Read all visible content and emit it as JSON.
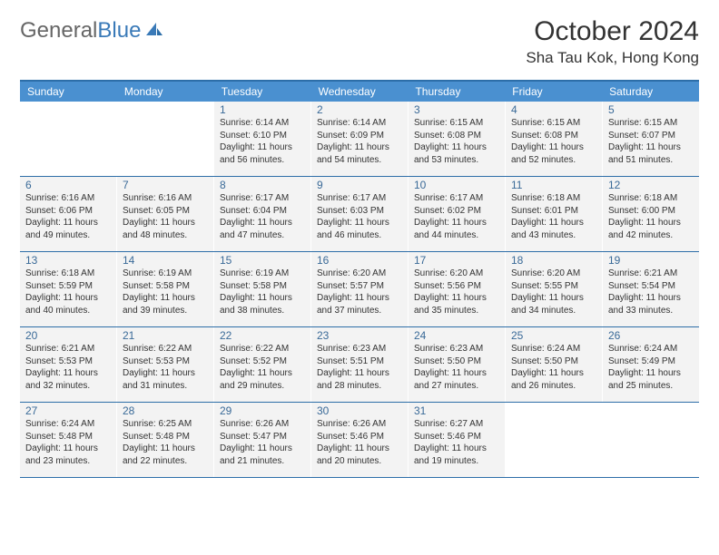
{
  "logo": {
    "text1": "General",
    "text2": "Blue"
  },
  "title": "October 2024",
  "location": "Sha Tau Kok, Hong Kong",
  "colors": {
    "header_bg": "#4a90d0",
    "header_text": "#ffffff",
    "border": "#2d6ea8",
    "cell_bg": "#f3f3f3",
    "daynum": "#3a6a98",
    "body_text": "#333333",
    "logo_gray": "#666666",
    "logo_blue": "#3a7ab8"
  },
  "day_headers": [
    "Sunday",
    "Monday",
    "Tuesday",
    "Wednesday",
    "Thursday",
    "Friday",
    "Saturday"
  ],
  "weeks": [
    [
      null,
      null,
      {
        "n": "1",
        "sr": "6:14 AM",
        "ss": "6:10 PM",
        "dl": "11 hours and 56 minutes."
      },
      {
        "n": "2",
        "sr": "6:14 AM",
        "ss": "6:09 PM",
        "dl": "11 hours and 54 minutes."
      },
      {
        "n": "3",
        "sr": "6:15 AM",
        "ss": "6:08 PM",
        "dl": "11 hours and 53 minutes."
      },
      {
        "n": "4",
        "sr": "6:15 AM",
        "ss": "6:08 PM",
        "dl": "11 hours and 52 minutes."
      },
      {
        "n": "5",
        "sr": "6:15 AM",
        "ss": "6:07 PM",
        "dl": "11 hours and 51 minutes."
      }
    ],
    [
      {
        "n": "6",
        "sr": "6:16 AM",
        "ss": "6:06 PM",
        "dl": "11 hours and 49 minutes."
      },
      {
        "n": "7",
        "sr": "6:16 AM",
        "ss": "6:05 PM",
        "dl": "11 hours and 48 minutes."
      },
      {
        "n": "8",
        "sr": "6:17 AM",
        "ss": "6:04 PM",
        "dl": "11 hours and 47 minutes."
      },
      {
        "n": "9",
        "sr": "6:17 AM",
        "ss": "6:03 PM",
        "dl": "11 hours and 46 minutes."
      },
      {
        "n": "10",
        "sr": "6:17 AM",
        "ss": "6:02 PM",
        "dl": "11 hours and 44 minutes."
      },
      {
        "n": "11",
        "sr": "6:18 AM",
        "ss": "6:01 PM",
        "dl": "11 hours and 43 minutes."
      },
      {
        "n": "12",
        "sr": "6:18 AM",
        "ss": "6:00 PM",
        "dl": "11 hours and 42 minutes."
      }
    ],
    [
      {
        "n": "13",
        "sr": "6:18 AM",
        "ss": "5:59 PM",
        "dl": "11 hours and 40 minutes."
      },
      {
        "n": "14",
        "sr": "6:19 AM",
        "ss": "5:58 PM",
        "dl": "11 hours and 39 minutes."
      },
      {
        "n": "15",
        "sr": "6:19 AM",
        "ss": "5:58 PM",
        "dl": "11 hours and 38 minutes."
      },
      {
        "n": "16",
        "sr": "6:20 AM",
        "ss": "5:57 PM",
        "dl": "11 hours and 37 minutes."
      },
      {
        "n": "17",
        "sr": "6:20 AM",
        "ss": "5:56 PM",
        "dl": "11 hours and 35 minutes."
      },
      {
        "n": "18",
        "sr": "6:20 AM",
        "ss": "5:55 PM",
        "dl": "11 hours and 34 minutes."
      },
      {
        "n": "19",
        "sr": "6:21 AM",
        "ss": "5:54 PM",
        "dl": "11 hours and 33 minutes."
      }
    ],
    [
      {
        "n": "20",
        "sr": "6:21 AM",
        "ss": "5:53 PM",
        "dl": "11 hours and 32 minutes."
      },
      {
        "n": "21",
        "sr": "6:22 AM",
        "ss": "5:53 PM",
        "dl": "11 hours and 31 minutes."
      },
      {
        "n": "22",
        "sr": "6:22 AM",
        "ss": "5:52 PM",
        "dl": "11 hours and 29 minutes."
      },
      {
        "n": "23",
        "sr": "6:23 AM",
        "ss": "5:51 PM",
        "dl": "11 hours and 28 minutes."
      },
      {
        "n": "24",
        "sr": "6:23 AM",
        "ss": "5:50 PM",
        "dl": "11 hours and 27 minutes."
      },
      {
        "n": "25",
        "sr": "6:24 AM",
        "ss": "5:50 PM",
        "dl": "11 hours and 26 minutes."
      },
      {
        "n": "26",
        "sr": "6:24 AM",
        "ss": "5:49 PM",
        "dl": "11 hours and 25 minutes."
      }
    ],
    [
      {
        "n": "27",
        "sr": "6:24 AM",
        "ss": "5:48 PM",
        "dl": "11 hours and 23 minutes."
      },
      {
        "n": "28",
        "sr": "6:25 AM",
        "ss": "5:48 PM",
        "dl": "11 hours and 22 minutes."
      },
      {
        "n": "29",
        "sr": "6:26 AM",
        "ss": "5:47 PM",
        "dl": "11 hours and 21 minutes."
      },
      {
        "n": "30",
        "sr": "6:26 AM",
        "ss": "5:46 PM",
        "dl": "11 hours and 20 minutes."
      },
      {
        "n": "31",
        "sr": "6:27 AM",
        "ss": "5:46 PM",
        "dl": "11 hours and 19 minutes."
      },
      null,
      null
    ]
  ],
  "labels": {
    "sunrise": "Sunrise:",
    "sunset": "Sunset:",
    "daylight": "Daylight:"
  }
}
